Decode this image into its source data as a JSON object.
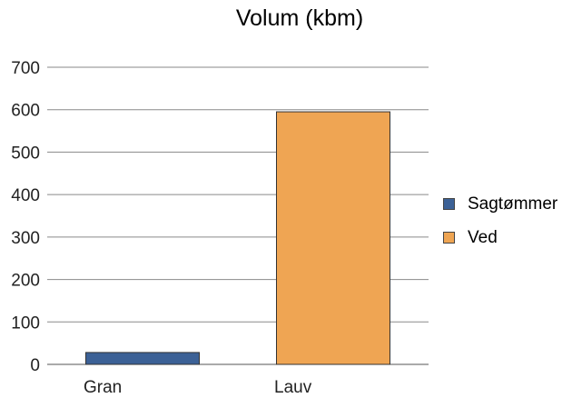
{
  "chart_data": {
    "type": "bar",
    "title": "Volum (kbm)",
    "categories": [
      "Gran",
      "Lauv"
    ],
    "series": [
      {
        "name": "Sagtømmer",
        "color": "#3c6196",
        "values": [
          28,
          0
        ]
      },
      {
        "name": "Ved",
        "color": "#efa553",
        "values": [
          0,
          595
        ]
      }
    ],
    "ylim": [
      0,
      700
    ],
    "yticks": [
      0,
      100,
      200,
      300,
      400,
      500,
      600,
      700
    ],
    "grid": true,
    "legend_position": "right",
    "xlabel": "",
    "ylabel": ""
  }
}
